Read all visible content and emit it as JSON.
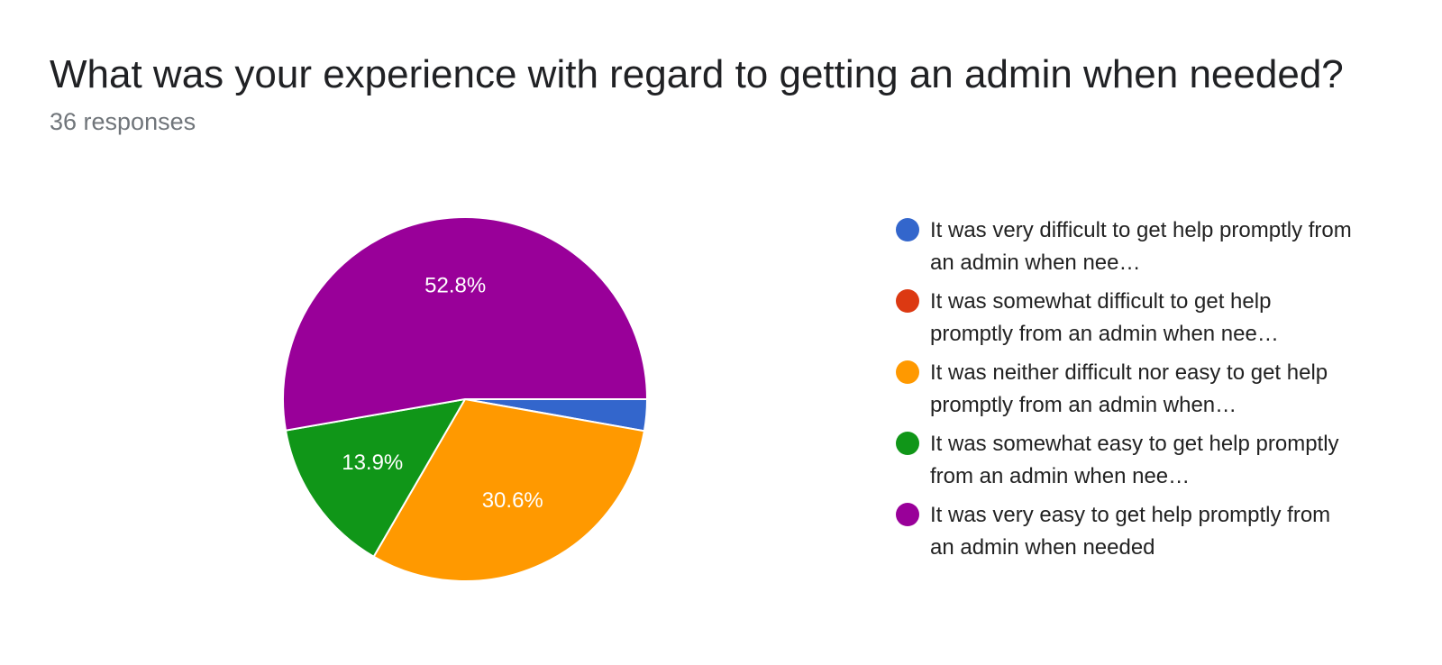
{
  "chart_data": {
    "type": "pie",
    "title": "What was your experience with regard to getting an admin when needed?",
    "subtitle": "36 responses",
    "legend_position": "right",
    "slices": [
      {
        "label": "It was very difficult to get help promptly from an admin when needed",
        "display_label": "It was very difficult to get help promptly from an admin when nee…",
        "value": 2.8,
        "color": "#3366cc",
        "data_label": ""
      },
      {
        "label": "It was somewhat difficult to get help promptly from an admin when needed",
        "display_label": "It was somewhat difficult to get help promptly from an admin when nee…",
        "value": 0,
        "color": "#dc3912",
        "data_label": ""
      },
      {
        "label": "It was neither difficult nor easy to get help promptly from an admin when needed",
        "display_label": "It was neither difficult nor easy to get help promptly from an admin when…",
        "value": 30.6,
        "color": "#ff9900",
        "data_label": "30.6%"
      },
      {
        "label": "It was somewhat easy to get help promptly from an admin when needed",
        "display_label": "It was somewhat easy to get help promptly from an admin when nee…",
        "value": 13.9,
        "color": "#109618",
        "data_label": "13.9%"
      },
      {
        "label": "It was very easy to get help promptly from an admin when needed",
        "display_label": "It was very easy to get help promptly from an admin when needed",
        "value": 52.8,
        "color": "#990099",
        "data_label": "52.8%"
      }
    ]
  }
}
